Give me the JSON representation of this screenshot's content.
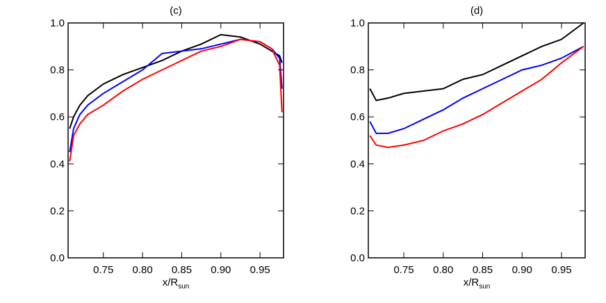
{
  "chart_data": [
    {
      "type": "line",
      "title": "(c)",
      "x_label": {
        "text": "x/R",
        "subscript": "sun"
      },
      "x": [
        0.707,
        0.712,
        0.72,
        0.73,
        0.75,
        0.775,
        0.8,
        0.825,
        0.85,
        0.875,
        0.9,
        0.925,
        0.95,
        0.965,
        0.975,
        0.978
      ],
      "series": [
        {
          "color": "#000000",
          "values": [
            0.55,
            0.6,
            0.65,
            0.69,
            0.74,
            0.78,
            0.81,
            0.84,
            0.88,
            0.91,
            0.95,
            0.94,
            0.91,
            0.88,
            0.86,
            0.83
          ]
        },
        {
          "color": "#0000ff",
          "values": [
            0.45,
            0.55,
            0.61,
            0.65,
            0.7,
            0.75,
            0.8,
            0.87,
            0.88,
            0.89,
            0.91,
            0.93,
            0.92,
            0.89,
            0.85,
            0.72
          ]
        },
        {
          "color": "#ff0000",
          "values": [
            0.41,
            0.52,
            0.57,
            0.61,
            0.65,
            0.71,
            0.76,
            0.8,
            0.84,
            0.88,
            0.9,
            0.93,
            0.92,
            0.89,
            0.82,
            0.62
          ]
        }
      ],
      "xlim": [
        0.705,
        0.98
      ],
      "xticks": [
        0.75,
        {
          "value": 0.8,
          "label": "0.80"
        },
        0.85,
        {
          "value": 0.9,
          "label": "0.90"
        },
        0.95
      ],
      "ylim": [
        0,
        1
      ],
      "yticks": [
        {
          "value": 0,
          "label": "0.0"
        },
        0.2,
        0.4,
        0.6,
        0.8,
        {
          "value": 1,
          "label": "1.0"
        }
      ]
    },
    {
      "type": "line",
      "title": "(d)",
      "x_label": {
        "text": "x/R",
        "subscript": "sun"
      },
      "x": [
        0.707,
        0.715,
        0.73,
        0.75,
        0.775,
        0.8,
        0.825,
        0.85,
        0.875,
        0.9,
        0.925,
        0.95,
        0.978
      ],
      "series": [
        {
          "color": "#000000",
          "values": [
            0.72,
            0.67,
            0.68,
            0.7,
            0.71,
            0.72,
            0.76,
            0.78,
            0.82,
            0.86,
            0.9,
            0.93,
            1.0
          ]
        },
        {
          "color": "#0000ff",
          "values": [
            0.58,
            0.53,
            0.53,
            0.55,
            0.59,
            0.63,
            0.68,
            0.72,
            0.76,
            0.8,
            0.82,
            0.85,
            0.9
          ]
        },
        {
          "color": "#ff0000",
          "values": [
            0.52,
            0.48,
            0.47,
            0.48,
            0.5,
            0.54,
            0.57,
            0.61,
            0.66,
            0.71,
            0.76,
            0.83,
            0.9
          ]
        }
      ],
      "xlim": [
        0.705,
        0.98
      ],
      "xticks": [
        0.75,
        {
          "value": 0.8,
          "label": "0.80"
        },
        0.85,
        {
          "value": 0.9,
          "label": "0.90"
        },
        0.95
      ],
      "ylim": [
        0,
        1
      ],
      "yticks": [
        {
          "value": 0,
          "label": "0.0"
        },
        0.2,
        0.4,
        0.6,
        0.8,
        {
          "value": 1,
          "label": "1.0"
        }
      ]
    }
  ]
}
